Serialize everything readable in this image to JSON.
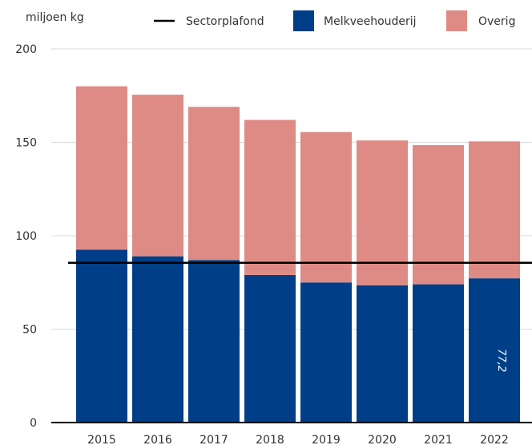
{
  "chart_data": {
    "type": "bar",
    "stacked": true,
    "ylabel": "miljoen kg",
    "categories": [
      "2015",
      "2016",
      "2017",
      "2018",
      "2019",
      "2020",
      "2021",
      "2022"
    ],
    "ylim": [
      0,
      200
    ],
    "yticks": [
      "0",
      "50",
      "100",
      "150",
      "200"
    ],
    "grid": true,
    "legend_position": "top",
    "series": [
      {
        "name": "Melkveehouderij",
        "color": "#003f87",
        "values": [
          92.5,
          89.0,
          87.0,
          79.0,
          75.0,
          73.5,
          74.0,
          77.2
        ]
      },
      {
        "name": "Overig",
        "color": "#de8b86",
        "values": [
          87.5,
          86.5,
          82.0,
          83.0,
          80.5,
          77.5,
          74.5,
          73.3
        ]
      }
    ],
    "reference_line": {
      "name": "Sectorplafond",
      "value": 85.5,
      "color": "#000000"
    },
    "annotation": {
      "category": "2022",
      "text": "77,2"
    }
  }
}
